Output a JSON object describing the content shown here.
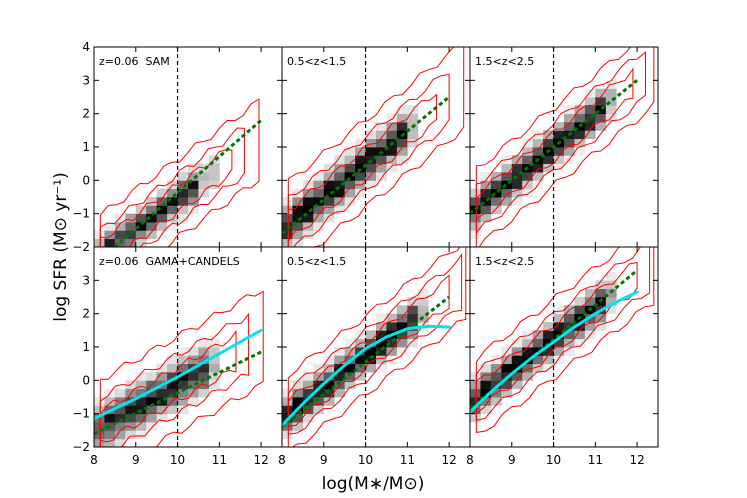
{
  "figure": {
    "xlabel": "log(M∗/M⊙)",
    "ylabel": "log SFR (M⊙ yr⁻¹)"
  },
  "colors": {
    "contour": "#ff0000",
    "main_sequence_fit": "#007700",
    "observed_fit": "#00e5ee",
    "mass_cut_line": "#000000"
  },
  "chart_data": [
    {
      "type": "heatmap",
      "row": "top",
      "label": "z=0.06  SAM",
      "xlim": [
        8,
        12.5
      ],
      "ylim": [
        -2,
        4
      ],
      "x_ticks": [
        "8",
        "9",
        "10",
        "11",
        "12"
      ],
      "y_ticks": [
        "−2",
        "−1",
        "0",
        "1",
        "2",
        "3",
        "4"
      ],
      "vline_x": 10,
      "green_fit": {
        "x": [
          8.5,
          12
        ],
        "y": [
          -2.0,
          1.8
        ]
      },
      "cyan_fit": null,
      "density": {
        "center": [
          9.5,
          -1.0
        ],
        "slope": 0.9,
        "spread": 0.45,
        "xmax": 10.6,
        "strength": 0.8
      }
    },
    {
      "type": "heatmap",
      "row": "top",
      "label": "0.5<z<1.5",
      "xlim": [
        8,
        12.5
      ],
      "ylim": [
        -2,
        4
      ],
      "x_ticks": [
        "8",
        "9",
        "10",
        "11",
        "12"
      ],
      "y_ticks": [],
      "vline_x": 10,
      "green_fit": {
        "x": [
          8,
          12
        ],
        "y": [
          -1.6,
          2.5
        ]
      },
      "cyan_fit": null,
      "density": {
        "center": [
          9.0,
          -0.5
        ],
        "slope": 1.0,
        "spread": 0.5,
        "xmax": 11.0,
        "strength": 1.0
      }
    },
    {
      "type": "heatmap",
      "row": "top",
      "label": "1.5<z<2.5",
      "xlim": [
        8,
        12.5
      ],
      "ylim": [
        -2,
        4
      ],
      "x_ticks": [
        "8",
        "9",
        "10",
        "11",
        "12"
      ],
      "y_ticks": [],
      "vline_x": 10,
      "green_fit": {
        "x": [
          8,
          12
        ],
        "y": [
          -1.0,
          3.0
        ]
      },
      "cyan_fit": null,
      "density": {
        "center": [
          9.0,
          0.0
        ],
        "slope": 1.0,
        "spread": 0.45,
        "xmax": 11.2,
        "strength": 1.0
      }
    },
    {
      "type": "heatmap",
      "row": "bottom",
      "label": "z=0.06  GAMA+CANDELS",
      "xlim": [
        8,
        12.5
      ],
      "ylim": [
        -2,
        4
      ],
      "x_ticks": [
        "8",
        "9",
        "10",
        "11",
        "12"
      ],
      "y_ticks": [
        "−2",
        "−1",
        "0",
        "1",
        "2",
        "3",
        "4"
      ],
      "vline_x": 10,
      "green_fit": {
        "x": [
          8,
          12
        ],
        "y": [
          -1.6,
          0.85
        ]
      },
      "cyan_fit": {
        "x": [
          8,
          9,
          10,
          11,
          12
        ],
        "y": [
          -1.15,
          -0.55,
          0.1,
          0.8,
          1.5
        ]
      },
      "density": {
        "center": [
          9.6,
          -0.4
        ],
        "slope": 0.7,
        "spread": 0.55,
        "xmax": 10.7,
        "strength": 0.9
      }
    },
    {
      "type": "heatmap",
      "row": "bottom",
      "label": "0.5<z<1.5",
      "xlim": [
        8,
        12.5
      ],
      "ylim": [
        -2,
        4
      ],
      "x_ticks": [
        "8",
        "9",
        "10",
        "11",
        "12"
      ],
      "y_ticks": [],
      "vline_x": 10,
      "green_fit": {
        "x": [
          8,
          12
        ],
        "y": [
          -1.4,
          2.5
        ]
      },
      "cyan_fit": {
        "x": [
          8,
          8.5,
          9,
          9.5,
          10,
          10.5,
          11,
          11.5,
          12
        ],
        "y": [
          -1.35,
          -0.7,
          -0.1,
          0.45,
          0.95,
          1.3,
          1.55,
          1.62,
          1.6
        ]
      },
      "density": {
        "center": [
          9.0,
          -0.2
        ],
        "slope": 0.95,
        "spread": 0.45,
        "xmax": 11.3,
        "strength": 1.0
      }
    },
    {
      "type": "heatmap",
      "row": "bottom",
      "label": "1.5<z<2.5",
      "xlim": [
        8,
        12.5
      ],
      "ylim": [
        -2,
        4
      ],
      "x_ticks": [
        "8",
        "9",
        "10",
        "11",
        "12"
      ],
      "y_ticks": [],
      "vline_x": 10,
      "green_fit": {
        "x": [
          8,
          12
        ],
        "y": [
          -0.85,
          3.3
        ]
      },
      "cyan_fit": {
        "x": [
          8,
          8.5,
          9,
          9.5,
          10,
          10.5,
          11,
          11.5,
          12
        ],
        "y": [
          -0.95,
          -0.35,
          0.2,
          0.7,
          1.15,
          1.6,
          2.0,
          2.35,
          2.65
        ]
      },
      "density": {
        "center": [
          9.0,
          0.3
        ],
        "slope": 0.95,
        "spread": 0.45,
        "xmax": 11.3,
        "strength": 1.0
      }
    }
  ]
}
